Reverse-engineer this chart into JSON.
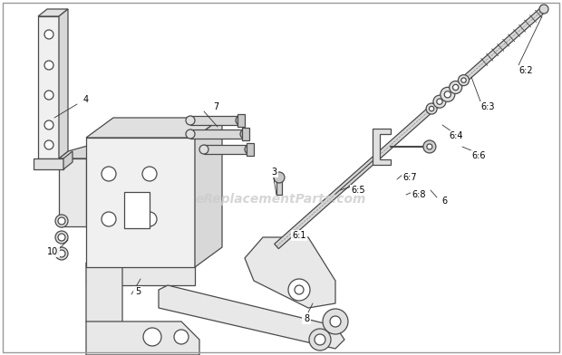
{
  "bg_color": "#ffffff",
  "line_color": "#4a4a4a",
  "light_gray": "#e8e8e8",
  "mid_gray": "#d0d0d0",
  "dark_gray": "#a0a0a0",
  "watermark": "eReplacementParts.com",
  "watermark_color": "#cccccc",
  "label_fs": 7,
  "figsize": [
    6.2,
    3.92
  ],
  "dpi": 100,
  "xlim": [
    0,
    620
  ],
  "ylim": [
    0,
    392
  ]
}
